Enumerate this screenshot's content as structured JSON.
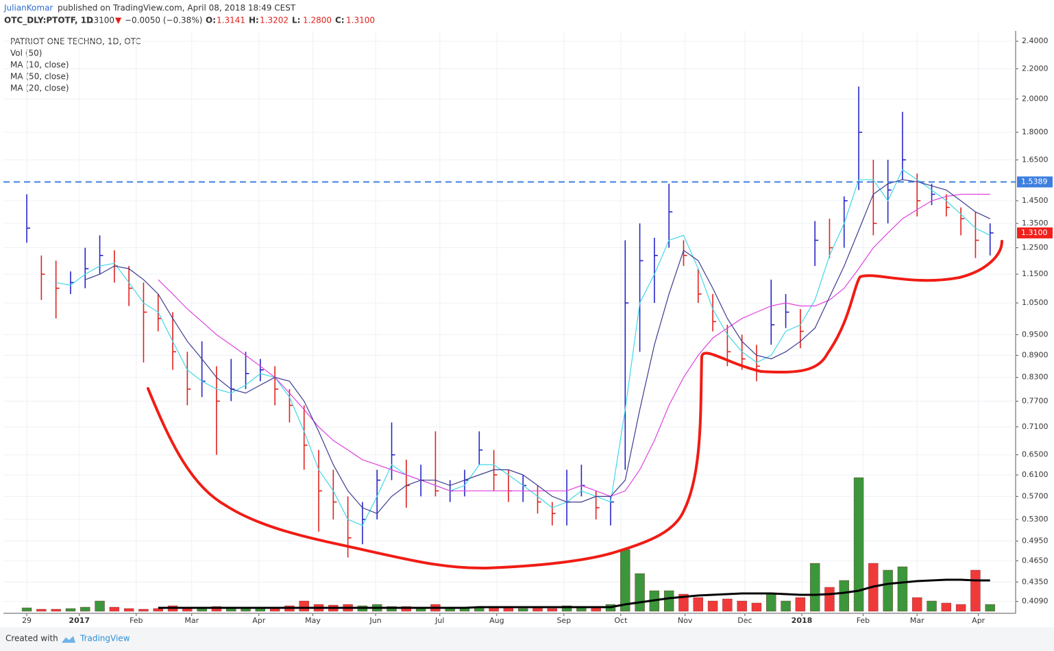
{
  "header": {
    "author": "JulianKomar",
    "published": "published on TradingView.com, April 08, 2018 18:49 CEST",
    "symbol": "OTC_DLY:PTOTF, 1D",
    "price": "1.3100",
    "arrow": "▼",
    "change": "−0.0050 (−0.38%)",
    "ohlc": [
      {
        "label": "O:",
        "value": "1.3141"
      },
      {
        "label": "H:",
        "value": "1.3202"
      },
      {
        "label": "L:",
        "value": "1.2800"
      },
      {
        "label": "C:",
        "value": "1.3100"
      }
    ]
  },
  "footer": {
    "created": "Created with",
    "brand": "TradingView"
  },
  "chart_data": {
    "type": "ohlc",
    "title": "PATRIOT ONE TECHNO, 1D, OTC",
    "x": [
      0,
      1,
      2,
      3,
      4,
      5,
      6,
      7,
      8,
      9,
      10,
      11,
      12,
      13,
      14,
      15,
      16,
      17,
      18,
      19,
      20,
      21,
      22,
      23,
      24,
      25,
      26,
      27,
      28,
      29,
      30,
      31,
      32,
      33,
      34,
      35,
      36,
      37,
      38,
      39,
      40,
      41,
      42,
      43,
      44,
      45,
      46,
      47,
      48,
      49,
      50,
      51,
      52,
      53,
      54,
      55,
      56,
      57,
      58,
      59,
      60,
      61,
      62,
      63,
      64,
      65,
      66
    ],
    "xlim": [
      -1.6,
      67.75
    ],
    "xticks": [
      {
        "value": 0,
        "label": "29"
      },
      {
        "value": 3.6,
        "label": "2017"
      },
      {
        "value": 7.5,
        "label": "Feb"
      },
      {
        "value": 11.3,
        "label": "Mar"
      },
      {
        "value": 15.9,
        "label": "Apr"
      },
      {
        "value": 19.6,
        "label": "May"
      },
      {
        "value": 23.9,
        "label": "Jun"
      },
      {
        "value": 28.3,
        "label": "Jul"
      },
      {
        "value": 32.2,
        "label": "Aug"
      },
      {
        "value": 36.8,
        "label": "Sep"
      },
      {
        "value": 40.7,
        "label": "Oct"
      },
      {
        "value": 45.1,
        "label": "Nov"
      },
      {
        "value": 49.2,
        "label": "Dec"
      },
      {
        "value": 53.1,
        "label": "2018"
      },
      {
        "value": 57.3,
        "label": "Feb"
      },
      {
        "value": 61.0,
        "label": "Mar"
      },
      {
        "value": 65.2,
        "label": "Apr"
      }
    ],
    "ylim": [
      0.394,
      2.48
    ],
    "log": true,
    "grid": true,
    "yticks": [
      {
        "value": 2.4,
        "label": "2.4000"
      },
      {
        "value": 2.2,
        "label": "2.2000"
      },
      {
        "value": 2.0,
        "label": "2.0000"
      },
      {
        "value": 1.8,
        "label": "1.8000"
      },
      {
        "value": 1.65,
        "label": "1.6500"
      },
      {
        "value": 1.45,
        "label": "1.4500"
      },
      {
        "value": 1.35,
        "label": "1.3500"
      },
      {
        "value": 1.25,
        "label": "1.2500"
      },
      {
        "value": 1.15,
        "label": "1.1500"
      },
      {
        "value": 1.05,
        "label": "1.0500"
      },
      {
        "value": 0.95,
        "label": "0.9500"
      },
      {
        "value": 0.89,
        "label": "0.8900"
      },
      {
        "value": 0.83,
        "label": "0.8300"
      },
      {
        "value": 0.77,
        "label": "0.7700"
      },
      {
        "value": 0.71,
        "label": "0.7100"
      },
      {
        "value": 0.65,
        "label": "0.6500"
      },
      {
        "value": 0.61,
        "label": "0.6100"
      },
      {
        "value": 0.57,
        "label": "0.5700"
      },
      {
        "value": 0.53,
        "label": "0.5300"
      },
      {
        "value": 0.495,
        "label": "0.4950"
      },
      {
        "value": 0.465,
        "label": "0.4650"
      },
      {
        "value": 0.435,
        "label": "0.4350"
      },
      {
        "value": 0.409,
        "label": "0.4090"
      }
    ],
    "up_color": "#2424c8",
    "down_color": "#e0201c",
    "ohlc": {
      "high": [
        1.48,
        1.22,
        1.2,
        1.16,
        1.25,
        1.3,
        1.24,
        1.18,
        1.12,
        1.08,
        1.02,
        0.9,
        0.93,
        0.86,
        0.88,
        0.9,
        0.88,
        0.86,
        0.8,
        0.76,
        0.66,
        0.62,
        0.57,
        0.56,
        0.62,
        0.72,
        0.64,
        0.63,
        0.7,
        0.6,
        0.62,
        0.7,
        0.66,
        0.62,
        0.61,
        0.59,
        0.56,
        0.62,
        0.63,
        0.58,
        0.57,
        1.28,
        1.35,
        1.29,
        1.53,
        1.28,
        1.17,
        1.08,
        0.98,
        0.95,
        0.92,
        1.13,
        1.08,
        1.03,
        1.36,
        1.37,
        1.47,
        2.08,
        1.65,
        1.65,
        1.92,
        1.58,
        1.53,
        1.48,
        1.42,
        1.4,
        1.35
      ],
      "low": [
        1.27,
        1.06,
        1.0,
        1.08,
        1.1,
        1.15,
        1.12,
        1.04,
        0.87,
        0.96,
        0.85,
        0.76,
        0.78,
        0.65,
        0.77,
        0.8,
        0.82,
        0.76,
        0.72,
        0.62,
        0.51,
        0.53,
        0.47,
        0.49,
        0.53,
        0.6,
        0.55,
        0.57,
        0.57,
        0.56,
        0.57,
        0.63,
        0.58,
        0.56,
        0.56,
        0.54,
        0.52,
        0.52,
        0.57,
        0.53,
        0.52,
        0.62,
        0.9,
        1.05,
        1.25,
        1.18,
        1.05,
        0.96,
        0.86,
        0.85,
        0.82,
        0.92,
        0.97,
        0.91,
        1.18,
        1.21,
        1.25,
        1.5,
        1.3,
        1.35,
        1.55,
        1.38,
        1.43,
        1.38,
        1.3,
        1.21,
        1.22
      ],
      "close": [
        1.33,
        1.15,
        1.1,
        1.12,
        1.17,
        1.22,
        1.18,
        1.1,
        1.02,
        1.0,
        0.9,
        0.8,
        0.82,
        0.77,
        0.8,
        0.84,
        0.85,
        0.8,
        0.76,
        0.67,
        0.58,
        0.56,
        0.5,
        0.53,
        0.6,
        0.65,
        0.59,
        0.6,
        0.58,
        0.58,
        0.6,
        0.66,
        0.61,
        0.58,
        0.59,
        0.56,
        0.54,
        0.56,
        0.59,
        0.55,
        0.56,
        1.05,
        1.2,
        1.22,
        1.4,
        1.22,
        1.08,
        0.99,
        0.9,
        0.88,
        0.86,
        0.98,
        1.02,
        0.96,
        1.28,
        1.25,
        1.45,
        1.8,
        1.35,
        1.5,
        1.65,
        1.45,
        1.48,
        1.42,
        1.37,
        1.28,
        1.31
      ]
    },
    "volume": {
      "name": "Vol (50)",
      "vlim": [
        0,
        230
      ],
      "up_color": "#3c963c",
      "down_color": "#f03a3a",
      "ma_color": "#000000",
      "values": [
        5,
        3,
        3,
        4,
        6,
        15,
        6,
        4,
        3,
        4,
        8,
        6,
        5,
        7,
        5,
        6,
        5,
        6,
        8,
        15,
        10,
        9,
        10,
        8,
        10,
        7,
        7,
        6,
        10,
        6,
        5,
        6,
        7,
        5,
        4,
        5,
        4,
        8,
        6,
        5,
        10,
        90,
        55,
        30,
        30,
        25,
        20,
        15,
        18,
        15,
        12,
        25,
        15,
        20,
        70,
        35,
        45,
        195,
        70,
        60,
        65,
        20,
        15,
        12,
        10,
        60,
        10
      ],
      "ma_values": [
        null,
        null,
        null,
        null,
        null,
        null,
        null,
        null,
        null,
        5,
        5,
        5,
        5,
        5,
        5,
        5,
        5,
        5,
        5,
        5,
        5,
        5,
        5,
        5,
        5,
        5,
        5,
        5,
        5,
        5,
        5,
        6,
        6,
        6,
        6,
        6,
        6,
        6,
        6,
        6,
        6,
        10,
        13,
        16,
        19,
        21,
        23,
        24,
        25,
        26,
        26,
        26,
        25,
        24,
        24,
        25,
        27,
        30,
        36,
        40,
        42,
        44,
        45,
        46,
        46,
        45,
        45
      ]
    },
    "series": [
      {
        "name": "MA (10, close)",
        "color": "#3fd8e8",
        "values": [
          null,
          null,
          1.12,
          1.11,
          1.15,
          1.18,
          1.19,
          1.12,
          1.05,
          1.02,
          0.93,
          0.85,
          0.82,
          0.8,
          0.79,
          0.81,
          0.84,
          0.83,
          0.78,
          0.7,
          0.62,
          0.58,
          0.53,
          0.52,
          0.57,
          0.63,
          0.61,
          0.6,
          0.59,
          0.58,
          0.59,
          0.63,
          0.63,
          0.61,
          0.59,
          0.57,
          0.55,
          0.56,
          0.58,
          0.57,
          0.56,
          0.75,
          1.05,
          1.15,
          1.28,
          1.3,
          1.17,
          1.03,
          0.95,
          0.9,
          0.87,
          0.89,
          0.96,
          0.98,
          1.06,
          1.22,
          1.35,
          1.55,
          1.55,
          1.45,
          1.6,
          1.55,
          1.5,
          1.45,
          1.39,
          1.33,
          1.3
        ]
      },
      {
        "name": "MA (50, close)",
        "color": "#e040e0",
        "values": [
          null,
          null,
          null,
          null,
          null,
          null,
          null,
          null,
          null,
          1.13,
          1.08,
          1.03,
          0.99,
          0.95,
          0.92,
          0.89,
          0.86,
          0.83,
          0.79,
          0.75,
          0.71,
          0.68,
          0.66,
          0.64,
          0.63,
          0.62,
          0.61,
          0.6,
          0.59,
          0.58,
          0.58,
          0.58,
          0.58,
          0.58,
          0.58,
          0.58,
          0.58,
          0.58,
          0.59,
          0.58,
          0.57,
          0.58,
          0.62,
          0.68,
          0.76,
          0.83,
          0.89,
          0.94,
          0.97,
          1.0,
          1.02,
          1.04,
          1.05,
          1.04,
          1.04,
          1.06,
          1.1,
          1.17,
          1.25,
          1.31,
          1.37,
          1.41,
          1.45,
          1.47,
          1.48,
          1.48,
          1.48
        ]
      },
      {
        "name": "MA (20, close)",
        "color": "#3a3a90",
        "values": [
          null,
          null,
          null,
          null,
          1.13,
          1.15,
          1.18,
          1.17,
          1.13,
          1.08,
          1.0,
          0.93,
          0.88,
          0.83,
          0.8,
          0.79,
          0.81,
          0.83,
          0.82,
          0.77,
          0.7,
          0.63,
          0.58,
          0.55,
          0.54,
          0.57,
          0.59,
          0.6,
          0.6,
          0.59,
          0.6,
          0.61,
          0.62,
          0.62,
          0.61,
          0.59,
          0.57,
          0.56,
          0.56,
          0.57,
          0.57,
          0.6,
          0.75,
          0.92,
          1.08,
          1.24,
          1.2,
          1.1,
          1.0,
          0.93,
          0.89,
          0.88,
          0.9,
          0.93,
          0.97,
          1.07,
          1.18,
          1.32,
          1.48,
          1.53,
          1.55,
          1.54,
          1.52,
          1.5,
          1.45,
          1.4,
          1.37
        ]
      }
    ],
    "hline": {
      "value": 1.5389,
      "label": "1.5389",
      "color": "#3d7fe0"
    },
    "last_price": {
      "value": 1.31,
      "label": "1.3100",
      "color": "#f0201c"
    }
  }
}
